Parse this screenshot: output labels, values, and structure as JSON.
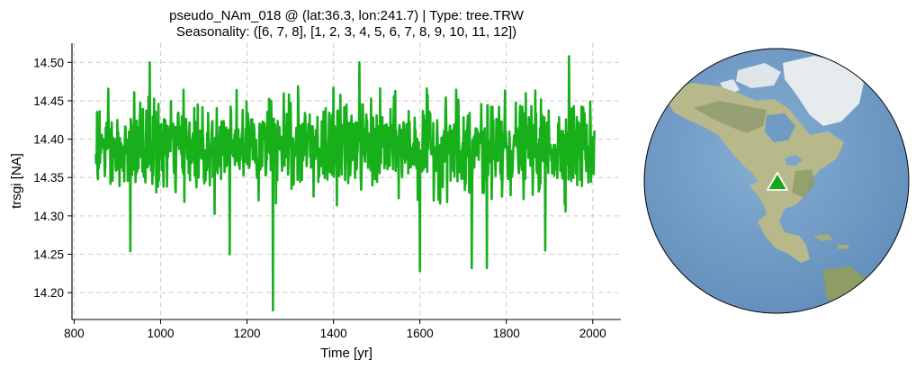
{
  "chart_data": {
    "type": "line",
    "title": "pseudo_NAm_018 @ (lat:36.3, lon:241.7) | Type: tree.TRW",
    "subtitle": "Seasonality: ([6, 7, 8], [1, 2, 3, 4, 5, 6, 7, 8, 9, 10, 11, 12])",
    "xlabel": "Time [yr]",
    "ylabel": "trsgi [NA]",
    "xlim": [
      795,
      2065
    ],
    "ylim": [
      14.165,
      14.525
    ],
    "xticks": [
      800,
      1000,
      1200,
      1400,
      1600,
      1800,
      2000
    ],
    "yticks": [
      14.2,
      14.25,
      14.3,
      14.35,
      14.4,
      14.45,
      14.5
    ],
    "xtick_labels": [
      "800",
      "1000",
      "1200",
      "1400",
      "1600",
      "1800",
      "2000"
    ],
    "ytick_labels": [
      "14.20",
      "14.25",
      "14.30",
      "14.35",
      "14.40",
      "14.45",
      "14.50"
    ],
    "grid": true,
    "series": [
      {
        "color": "#17b01b",
        "x_start": 850,
        "x_end": 2004,
        "baseline": 14.39,
        "min": {
          "x": 1260,
          "y": 14.177
        },
        "max": {
          "x": 1945,
          "y": 14.508
        },
        "notable_points": [
          {
            "x": 930,
            "y": 14.254
          },
          {
            "x": 975,
            "y": 14.5
          },
          {
            "x": 1160,
            "y": 14.25
          },
          {
            "x": 1460,
            "y": 14.5
          },
          {
            "x": 1600,
            "y": 14.228
          },
          {
            "x": 1720,
            "y": 14.232
          },
          {
            "x": 1755,
            "y": 14.232
          },
          {
            "x": 1890,
            "y": 14.255
          }
        ]
      }
    ]
  },
  "globe": {
    "marker": {
      "lat": 36.3,
      "lon": 241.7,
      "shape": "triangle",
      "color": "#17a51b"
    },
    "ocean_color": "#6f9bc4",
    "land_color": "#b9bb8a"
  }
}
